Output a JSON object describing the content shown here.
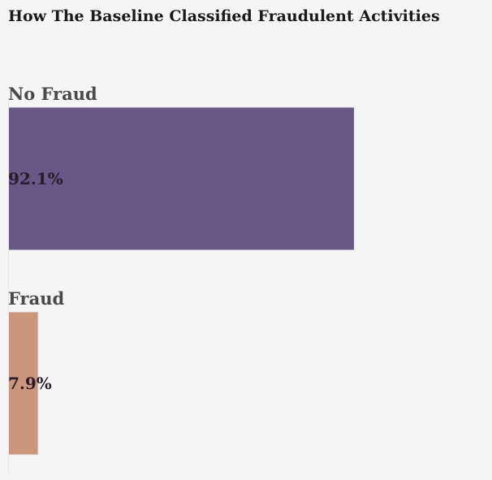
{
  "chart_data": {
    "type": "bar",
    "orientation": "horizontal",
    "title": "How The Baseline Classified Fraudulent Activities",
    "categories": [
      "No Fraud",
      "Fraud"
    ],
    "values": [
      92.1,
      7.9
    ],
    "value_labels": [
      "92.1%",
      "7.9%"
    ],
    "colors": [
      "#675887",
      "#cc967c"
    ],
    "xlim": [
      0,
      100
    ],
    "grid": false,
    "legend": "none"
  }
}
